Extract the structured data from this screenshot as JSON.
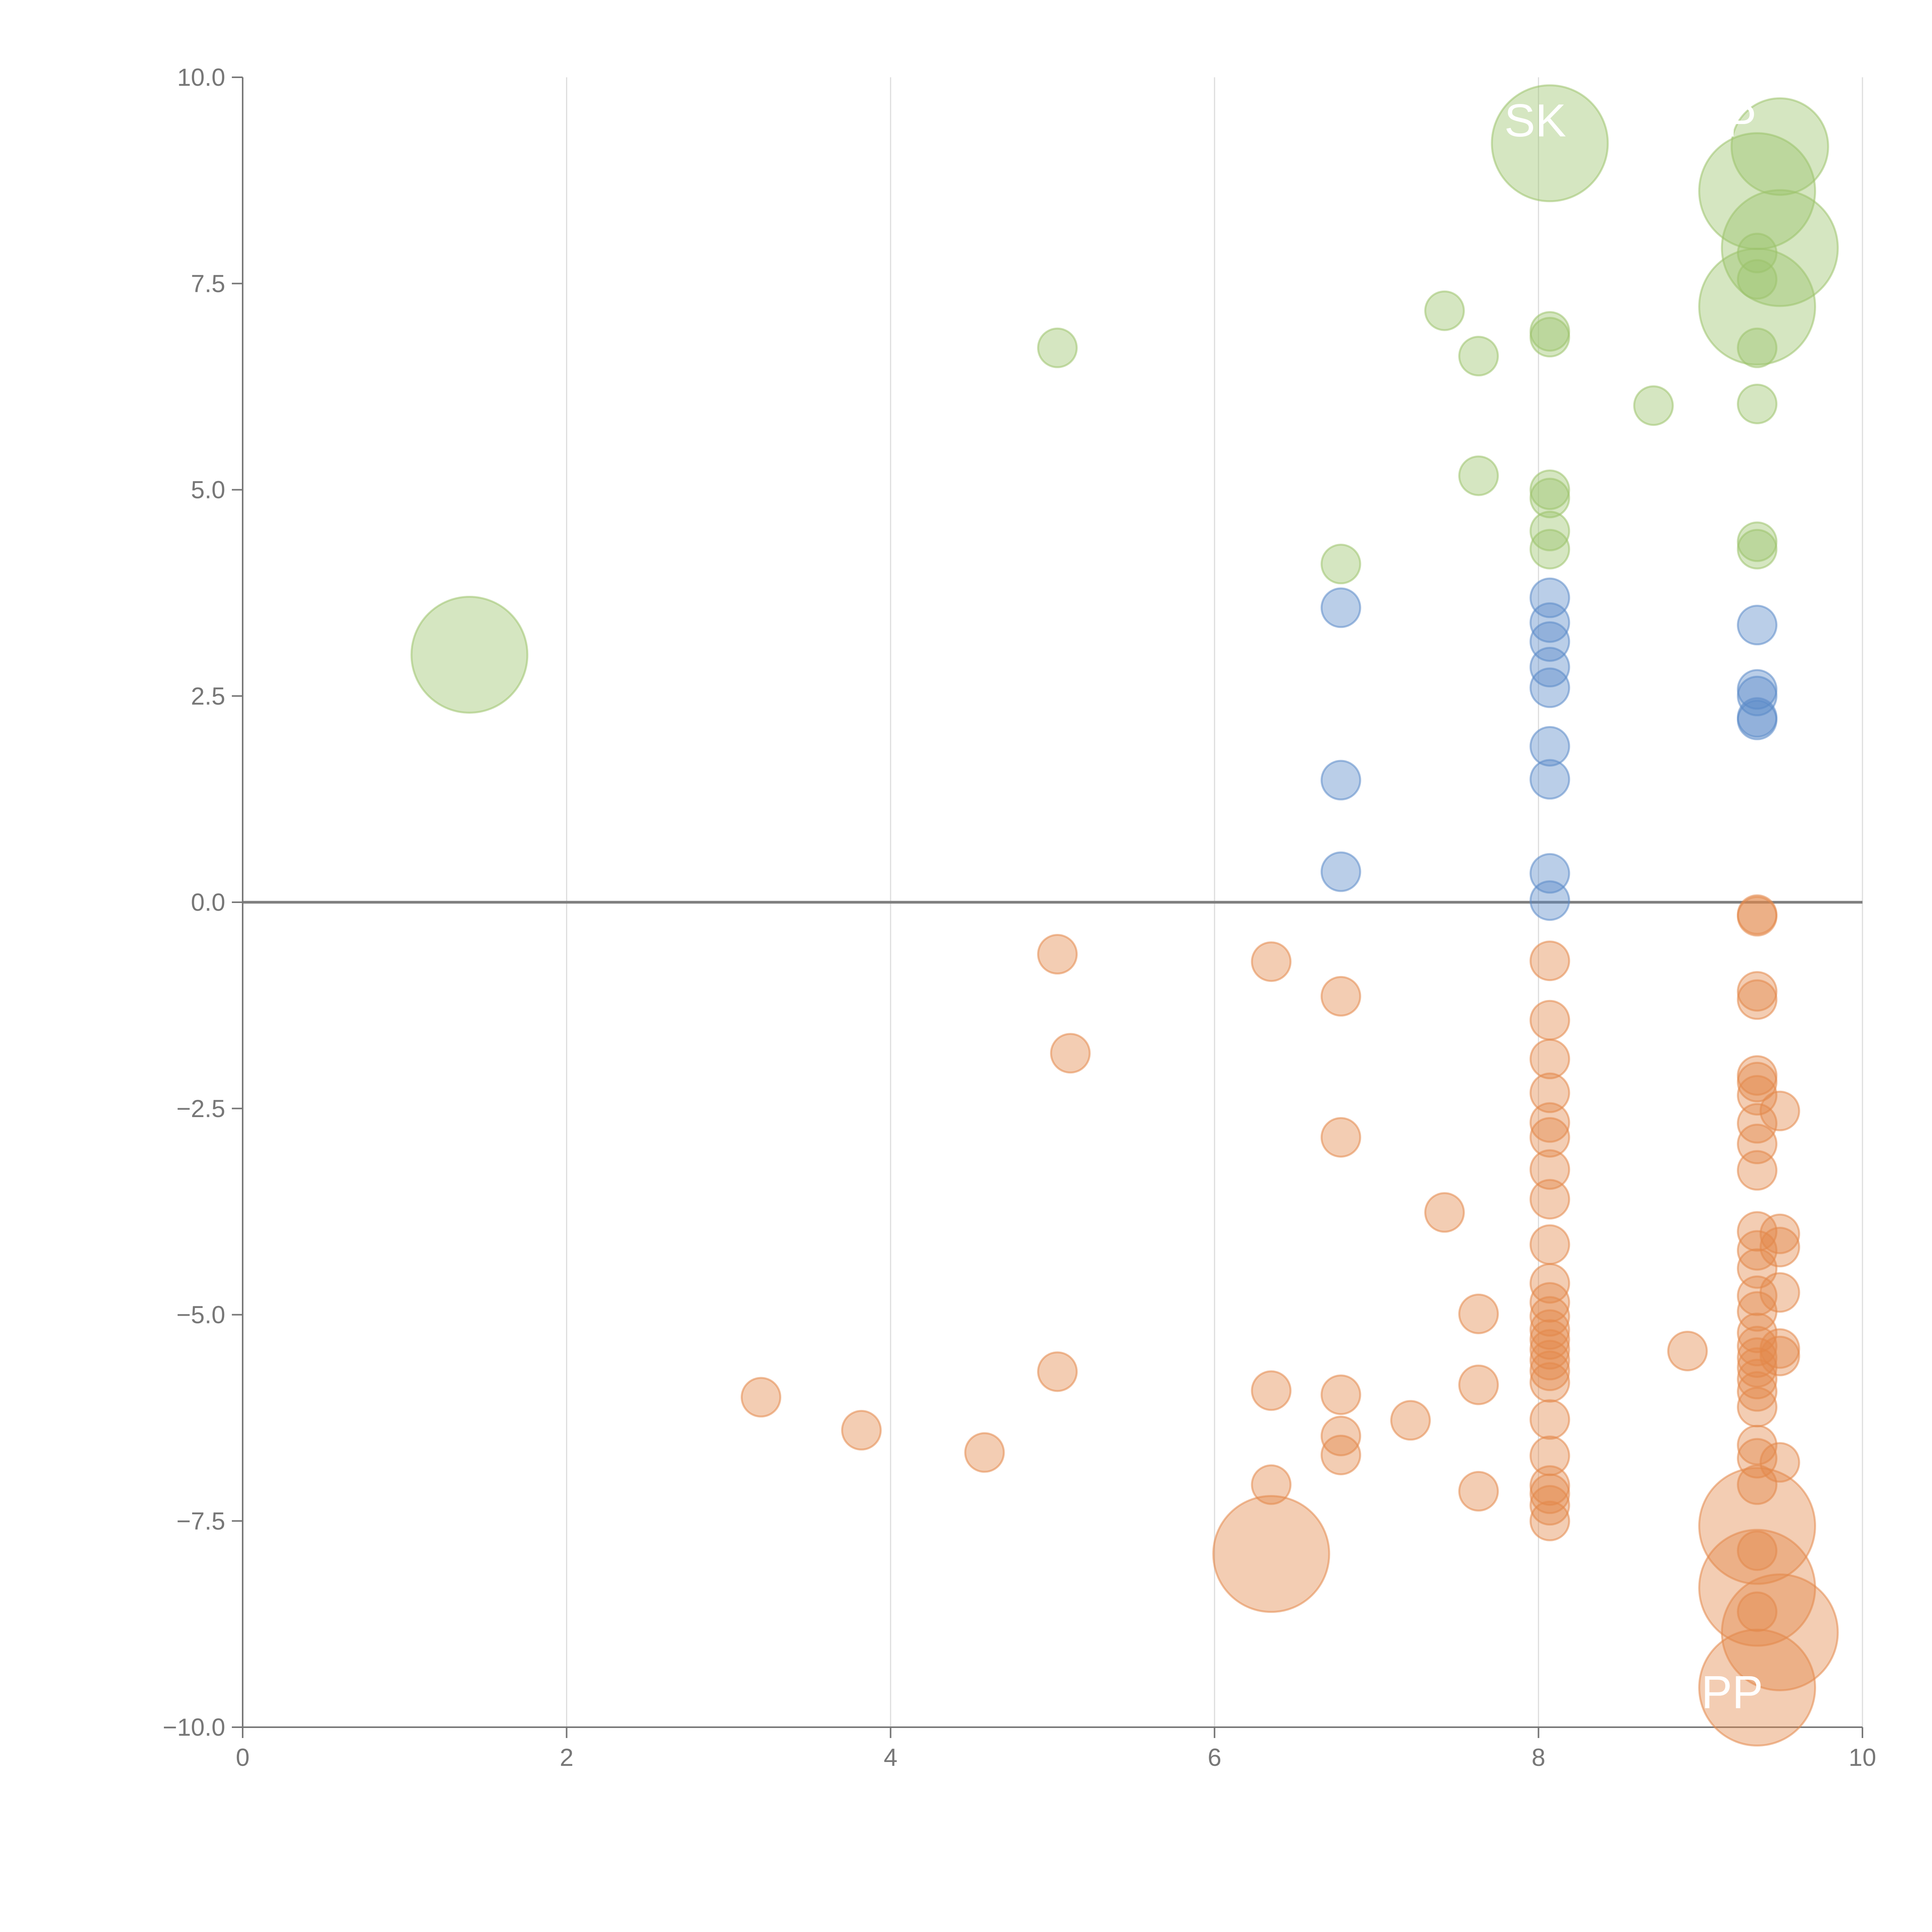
{
  "chart_data": {
    "type": "scatter",
    "title": "",
    "xlabel": "",
    "ylabel": "",
    "xlim": [
      0,
      10
    ],
    "ylim": [
      -10,
      10
    ],
    "x_ticks": [
      "0",
      "2",
      "4",
      "6",
      "8",
      "10"
    ],
    "y_ticks": [
      "10.0",
      "7.5",
      "5.0",
      "2.5",
      "0.0",
      "−2.5",
      "−5.0",
      "−7.5",
      "−10.0"
    ],
    "grid": "vertical",
    "zero_line": true,
    "colors": {
      "green": "#9cc36b",
      "blue": "#5b8ac8",
      "orange": "#e3894a",
      "axis": "#777777",
      "grid": "#dddddd",
      "zero": "#7f7f7f"
    },
    "series": [
      {
        "color": "green",
        "points": [
          {
            "x": 1.4,
            "y": 3.0,
            "r": 3
          },
          {
            "x": 5.03,
            "y": 6.72
          },
          {
            "x": 6.78,
            "y": 4.1
          },
          {
            "x": 7.42,
            "y": 7.17
          },
          {
            "x": 7.63,
            "y": 6.62
          },
          {
            "x": 7.63,
            "y": 5.17
          },
          {
            "x": 8.07,
            "y": 9.2,
            "r": 3
          },
          {
            "x": 8.07,
            "y": 6.92
          },
          {
            "x": 8.07,
            "y": 6.85
          },
          {
            "x": 8.07,
            "y": 5.0
          },
          {
            "x": 8.07,
            "y": 4.9
          },
          {
            "x": 8.07,
            "y": 4.5
          },
          {
            "x": 8.07,
            "y": 4.28
          },
          {
            "x": 8.71,
            "y": 6.02
          },
          {
            "x": 9.35,
            "y": 8.62,
            "r": 3
          },
          {
            "x": 9.49,
            "y": 9.16,
            "r": 2.5
          },
          {
            "x": 9.49,
            "y": 7.93,
            "r": 3
          },
          {
            "x": 9.35,
            "y": 7.87
          },
          {
            "x": 9.35,
            "y": 7.22,
            "r": 3
          },
          {
            "x": 9.35,
            "y": 7.55
          },
          {
            "x": 9.35,
            "y": 6.72
          },
          {
            "x": 9.35,
            "y": 6.04
          },
          {
            "x": 9.35,
            "y": 4.37
          },
          {
            "x": 9.35,
            "y": 4.28
          }
        ]
      },
      {
        "color": "blue",
        "points": [
          {
            "x": 6.78,
            "y": 3.57
          },
          {
            "x": 6.78,
            "y": 1.48
          },
          {
            "x": 6.78,
            "y": 0.37
          },
          {
            "x": 8.07,
            "y": 3.69
          },
          {
            "x": 8.07,
            "y": 3.39
          },
          {
            "x": 8.07,
            "y": 3.16
          },
          {
            "x": 8.07,
            "y": 2.85
          },
          {
            "x": 8.07,
            "y": 2.6
          },
          {
            "x": 8.07,
            "y": 1.89
          },
          {
            "x": 8.07,
            "y": 1.49
          },
          {
            "x": 8.07,
            "y": 0.35
          },
          {
            "x": 8.07,
            "y": 0.02
          },
          {
            "x": 9.35,
            "y": 3.36
          },
          {
            "x": 9.35,
            "y": 2.58
          },
          {
            "x": 9.35,
            "y": 2.5
          },
          {
            "x": 9.35,
            "y": 2.24
          },
          {
            "x": 9.35,
            "y": 2.21
          }
        ]
      },
      {
        "color": "orange",
        "points": [
          {
            "x": 3.2,
            "y": -6.0
          },
          {
            "x": 3.82,
            "y": -6.4
          },
          {
            "x": 4.58,
            "y": -6.67
          },
          {
            "x": 5.03,
            "y": -0.63
          },
          {
            "x": 5.03,
            "y": -5.69
          },
          {
            "x": 5.11,
            "y": -1.83
          },
          {
            "x": 6.35,
            "y": -0.72
          },
          {
            "x": 6.35,
            "y": -5.92
          },
          {
            "x": 6.35,
            "y": -7.06
          },
          {
            "x": 6.35,
            "y": -7.9,
            "r": 3
          },
          {
            "x": 6.78,
            "y": -1.14
          },
          {
            "x": 6.78,
            "y": -2.85
          },
          {
            "x": 6.78,
            "y": -5.97
          },
          {
            "x": 6.78,
            "y": -6.47
          },
          {
            "x": 6.78,
            "y": -6.7
          },
          {
            "x": 7.21,
            "y": -6.28
          },
          {
            "x": 7.42,
            "y": -3.76
          },
          {
            "x": 7.63,
            "y": -4.99
          },
          {
            "x": 7.63,
            "y": -5.85
          },
          {
            "x": 7.63,
            "y": -7.14
          },
          {
            "x": 8.07,
            "y": -0.71
          },
          {
            "x": 8.07,
            "y": -1.43
          },
          {
            "x": 8.07,
            "y": -1.9
          },
          {
            "x": 8.07,
            "y": -2.31
          },
          {
            "x": 8.07,
            "y": -2.67
          },
          {
            "x": 8.07,
            "y": -2.85
          },
          {
            "x": 8.07,
            "y": -3.24
          },
          {
            "x": 8.07,
            "y": -3.6
          },
          {
            "x": 8.07,
            "y": -4.15
          },
          {
            "x": 8.07,
            "y": -4.62
          },
          {
            "x": 8.07,
            "y": -4.85
          },
          {
            "x": 8.07,
            "y": -5.02
          },
          {
            "x": 8.07,
            "y": -5.18
          },
          {
            "x": 8.07,
            "y": -5.3
          },
          {
            "x": 8.07,
            "y": -5.42
          },
          {
            "x": 8.07,
            "y": -5.55
          },
          {
            "x": 8.07,
            "y": -5.68
          },
          {
            "x": 8.07,
            "y": -5.82
          },
          {
            "x": 8.07,
            "y": -6.27
          },
          {
            "x": 8.07,
            "y": -6.71
          },
          {
            "x": 8.07,
            "y": -7.07
          },
          {
            "x": 8.07,
            "y": -7.17
          },
          {
            "x": 8.07,
            "y": -7.31
          },
          {
            "x": 8.07,
            "y": -7.5
          },
          {
            "x": 8.92,
            "y": -5.44
          },
          {
            "x": 9.35,
            "y": -0.15
          },
          {
            "x": 9.35,
            "y": -0.17
          },
          {
            "x": 9.35,
            "y": -1.08
          },
          {
            "x": 9.35,
            "y": -1.18
          },
          {
            "x": 9.35,
            "y": -2.1
          },
          {
            "x": 9.35,
            "y": -2.18
          },
          {
            "x": 9.35,
            "y": -2.34
          },
          {
            "x": 9.35,
            "y": -2.68
          },
          {
            "x": 9.35,
            "y": -2.93
          },
          {
            "x": 9.35,
            "y": -3.25
          },
          {
            "x": 9.35,
            "y": -3.99
          },
          {
            "x": 9.35,
            "y": -4.22
          },
          {
            "x": 9.35,
            "y": -4.44
          },
          {
            "x": 9.35,
            "y": -4.77
          },
          {
            "x": 9.35,
            "y": -4.96
          },
          {
            "x": 9.35,
            "y": -5.22
          },
          {
            "x": 9.35,
            "y": -5.38
          },
          {
            "x": 9.35,
            "y": -5.52
          },
          {
            "x": 9.35,
            "y": -5.64
          },
          {
            "x": 9.35,
            "y": -5.78
          },
          {
            "x": 9.35,
            "y": -5.93
          },
          {
            "x": 9.35,
            "y": -6.12
          },
          {
            "x": 9.35,
            "y": -6.58
          },
          {
            "x": 9.35,
            "y": -6.74
          },
          {
            "x": 9.35,
            "y": -7.06
          },
          {
            "x": 9.35,
            "y": -7.56,
            "r": 3
          },
          {
            "x": 9.35,
            "y": -7.86
          },
          {
            "x": 9.35,
            "y": -8.31,
            "r": 3
          },
          {
            "x": 9.35,
            "y": -8.6
          },
          {
            "x": 9.35,
            "y": -9.52,
            "r": 3
          },
          {
            "x": 9.49,
            "y": -2.53
          },
          {
            "x": 9.49,
            "y": -4.02
          },
          {
            "x": 9.49,
            "y": -4.18
          },
          {
            "x": 9.49,
            "y": -4.73
          },
          {
            "x": 9.49,
            "y": -5.41
          },
          {
            "x": 9.49,
            "y": -5.5
          },
          {
            "x": 9.49,
            "y": -6.79
          },
          {
            "x": 9.49,
            "y": -8.85,
            "r": 3
          }
        ]
      }
    ],
    "labels": [
      {
        "text": "SK",
        "x": 7.98,
        "y": 9.47
      },
      {
        "text": "P",
        "x": 9.25,
        "y": 9.47
      },
      {
        "text": "APP",
        "x": 9.1,
        "y": -9.58
      }
    ]
  }
}
